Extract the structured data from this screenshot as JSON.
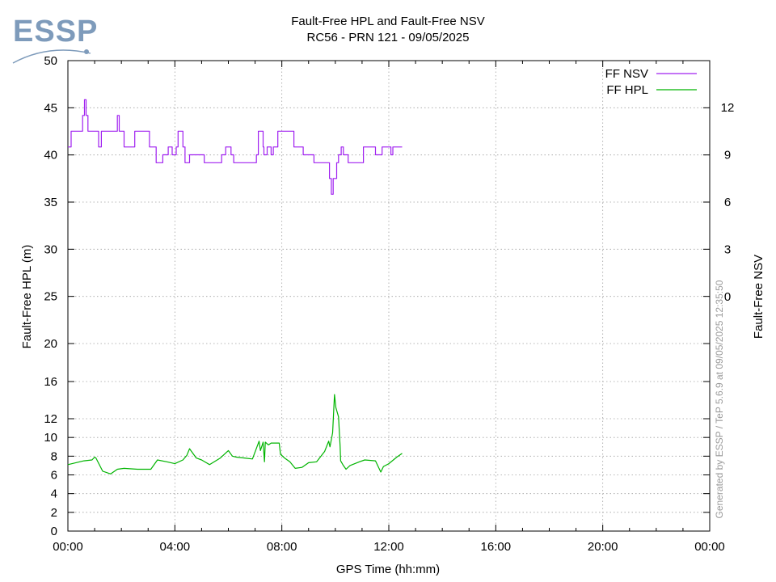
{
  "logo": {
    "text": "ESSP",
    "color": "#7e9bbb"
  },
  "chart_data": {
    "type": "line",
    "title": "Fault-Free HPL and Fault-Free NSV",
    "subtitle": "RC56 - PRN 121 - 09/05/2025",
    "xlabel": "GPS Time (hh:mm)",
    "ylabel": "Fault-Free HPL (m)",
    "y2label": "Fault-Free NSV",
    "xlim": [
      0,
      24
    ],
    "x_ticks": [
      "00:00",
      "04:00",
      "08:00",
      "12:00",
      "16:00",
      "20:00",
      "00:00"
    ],
    "y_ticks": [
      "0",
      "2",
      "4",
      "6",
      "8",
      "10",
      "12",
      "16",
      "20",
      "25",
      "30",
      "35",
      "40",
      "45",
      "50"
    ],
    "y2_ticks": [
      "0",
      "3",
      "6",
      "9",
      "12"
    ],
    "grid": true,
    "legend_position": "top-right",
    "footer": "Generated by ESSP / TeP 5.6.9 at 09/05/2025 12:35:50",
    "series": [
      {
        "name": "FF NSV",
        "axis": "right",
        "color": "#a020f0",
        "x": [
          0.0,
          0.12,
          0.12,
          0.55,
          0.55,
          0.62,
          0.62,
          0.68,
          0.68,
          0.75,
          0.75,
          1.15,
          1.15,
          1.25,
          1.25,
          1.85,
          1.85,
          1.92,
          1.92,
          2.1,
          2.1,
          2.5,
          2.5,
          3.05,
          3.05,
          3.3,
          3.3,
          3.55,
          3.55,
          3.75,
          3.75,
          3.9,
          3.9,
          4.05,
          4.05,
          4.12,
          4.12,
          4.3,
          4.3,
          4.38,
          4.38,
          4.55,
          4.55,
          5.1,
          5.1,
          5.75,
          5.75,
          5.9,
          5.9,
          6.1,
          6.1,
          6.2,
          6.2,
          7.05,
          7.05,
          7.12,
          7.12,
          7.3,
          7.3,
          7.33,
          7.33,
          7.45,
          7.45,
          7.6,
          7.6,
          7.68,
          7.68,
          7.85,
          7.85,
          8.45,
          8.45,
          8.8,
          8.8,
          9.2,
          9.2,
          9.78,
          9.78,
          9.85,
          9.85,
          9.92,
          9.92,
          10.05,
          10.05,
          10.12,
          10.12,
          10.22,
          10.22,
          10.3,
          10.3,
          10.48,
          10.48,
          11.05,
          11.05,
          11.5,
          11.5,
          11.75,
          11.75,
          12.08,
          12.08,
          12.15,
          12.15,
          12.5
        ],
        "values": [
          9.5,
          9.5,
          10.5,
          10.5,
          11.5,
          11.5,
          12.5,
          12.5,
          11.5,
          11.5,
          10.5,
          10.5,
          9.5,
          9.5,
          10.5,
          10.5,
          11.5,
          11.5,
          10.5,
          10.5,
          9.5,
          9.5,
          10.5,
          10.5,
          9.5,
          9.5,
          8.5,
          8.5,
          9,
          9,
          9.5,
          9.5,
          9,
          9,
          9.5,
          9.5,
          10.5,
          10.5,
          9.5,
          9.5,
          8.5,
          8.5,
          9,
          9,
          8.5,
          8.5,
          9,
          9,
          9.5,
          9.5,
          9,
          9,
          8.5,
          8.5,
          9,
          9,
          10.5,
          10.5,
          9.5,
          9.5,
          9,
          9,
          9.5,
          9.5,
          9,
          9,
          9.5,
          9.5,
          10.5,
          10.5,
          9.5,
          9.5,
          9,
          9,
          8.5,
          8.5,
          7.5,
          7.5,
          6.5,
          6.5,
          7.5,
          7.5,
          8.5,
          8.5,
          9,
          9,
          9.5,
          9.5,
          9,
          9,
          8.5,
          8.5,
          9.5,
          9.5,
          9,
          9,
          9.5,
          9.5,
          9,
          9,
          9.5,
          9.5
        ]
      },
      {
        "name": "FF HPL",
        "axis": "left",
        "color": "#00b400",
        "x": [
          0.0,
          0.3,
          0.6,
          0.9,
          1.0,
          1.05,
          1.3,
          1.6,
          1.85,
          2.1,
          2.6,
          3.1,
          3.35,
          3.7,
          4.0,
          4.3,
          4.45,
          4.55,
          4.8,
          5.0,
          5.3,
          5.7,
          6.0,
          6.15,
          6.3,
          6.6,
          6.9,
          7.15,
          7.2,
          7.3,
          7.35,
          7.38,
          7.5,
          7.6,
          7.9,
          7.95,
          8.1,
          8.3,
          8.5,
          8.75,
          9.0,
          9.3,
          9.6,
          9.75,
          9.8,
          9.9,
          9.97,
          10.02,
          10.12,
          10.18,
          10.2,
          10.3,
          10.4,
          10.55,
          10.9,
          11.1,
          11.5,
          11.7,
          11.8,
          12.0,
          12.3,
          12.5
        ],
        "values": [
          7.1,
          7.3,
          7.5,
          7.6,
          7.9,
          7.8,
          6.4,
          6.1,
          6.6,
          6.7,
          6.6,
          6.6,
          7.6,
          7.4,
          7.2,
          7.6,
          8.1,
          8.8,
          7.8,
          7.6,
          7.1,
          7.8,
          8.6,
          8.0,
          7.9,
          7.8,
          7.7,
          9.6,
          8.6,
          9.5,
          7.4,
          9.5,
          9.2,
          9.4,
          9.4,
          8.2,
          7.8,
          7.4,
          6.7,
          6.8,
          7.3,
          7.4,
          8.5,
          9.6,
          9.0,
          10.5,
          14.6,
          13.2,
          12.2,
          9.0,
          7.5,
          7.0,
          6.6,
          7.0,
          7.4,
          7.6,
          7.5,
          6.3,
          6.9,
          7.2,
          7.9,
          8.3
        ]
      }
    ]
  }
}
